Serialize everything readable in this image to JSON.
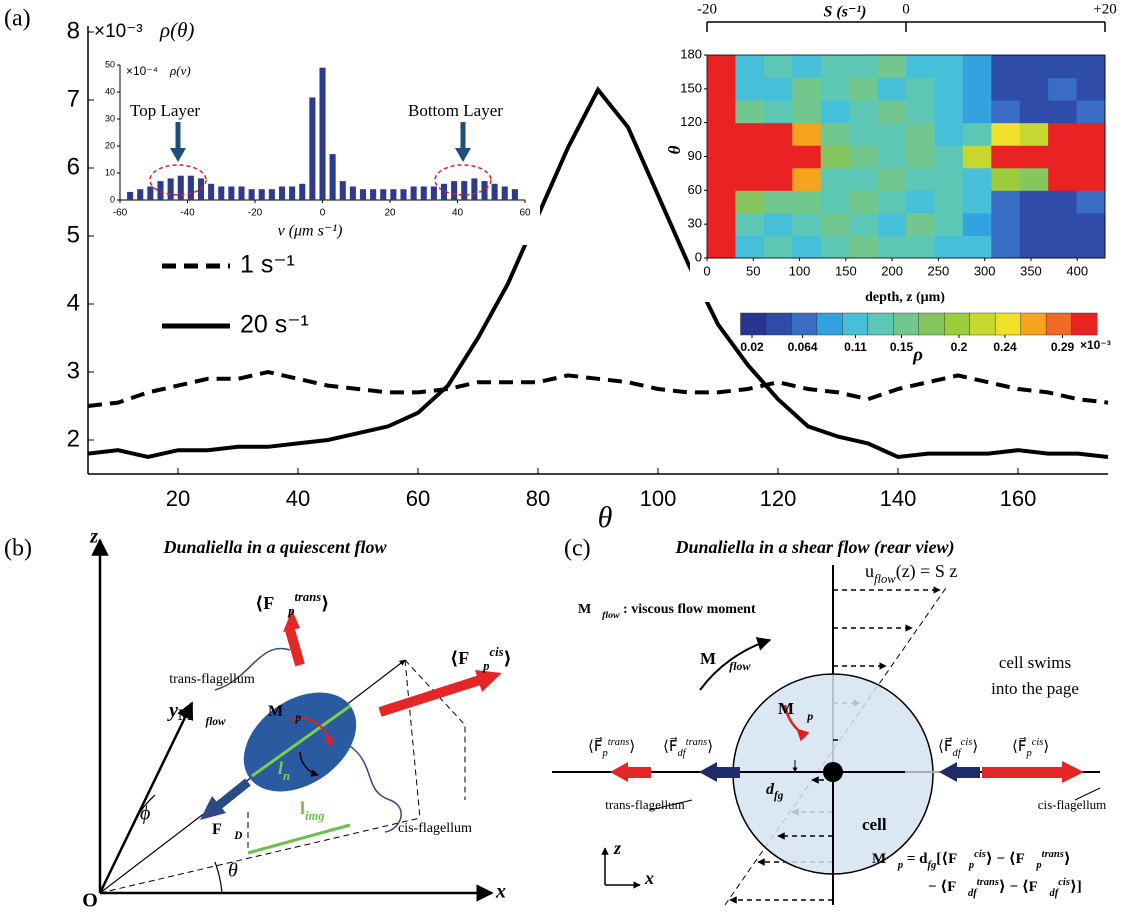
{
  "chart_data": [
    {
      "type": "line",
      "panel_label": "(a)",
      "y_label": "ρ(θ)",
      "y_multiplier": "×10⁻³",
      "x_label": "θ",
      "xlim": [
        5,
        175
      ],
      "ylim": [
        1.5,
        8
      ],
      "xticks": [
        20,
        40,
        60,
        80,
        100,
        120,
        140,
        160
      ],
      "yticks": [
        2,
        3,
        4,
        5,
        6,
        7,
        8
      ],
      "x": [
        5,
        10,
        15,
        20,
        25,
        30,
        35,
        40,
        45,
        50,
        55,
        60,
        65,
        70,
        75,
        80,
        85,
        90,
        95,
        100,
        105,
        110,
        115,
        120,
        125,
        130,
        135,
        140,
        145,
        150,
        155,
        160,
        165,
        170,
        175
      ],
      "series": [
        {
          "name": "1 s⁻¹",
          "color": "#000000",
          "dash": true,
          "values": [
            2.5,
            2.55,
            2.7,
            2.8,
            2.9,
            2.9,
            3.0,
            2.9,
            2.8,
            2.75,
            2.7,
            2.7,
            2.75,
            2.85,
            2.85,
            2.85,
            2.95,
            2.9,
            2.85,
            2.75,
            2.7,
            2.7,
            2.75,
            2.85,
            2.75,
            2.7,
            2.6,
            2.75,
            2.85,
            2.95,
            2.85,
            2.75,
            2.7,
            2.6,
            2.55
          ]
        },
        {
          "name": "20 s⁻¹",
          "color": "#000000",
          "dash": false,
          "values": [
            1.8,
            1.85,
            1.75,
            1.85,
            1.85,
            1.9,
            1.9,
            1.95,
            2.0,
            2.1,
            2.2,
            2.4,
            2.8,
            3.5,
            4.3,
            5.3,
            6.3,
            7.15,
            6.6,
            5.6,
            4.6,
            3.7,
            3.1,
            2.6,
            2.2,
            2.05,
            1.95,
            1.75,
            1.8,
            1.8,
            1.8,
            1.85,
            1.8,
            1.8,
            1.75
          ]
        }
      ]
    },
    {
      "type": "bar",
      "y_label": "ρ(v)",
      "y_multiplier": "×10⁻⁴",
      "x_label": "v (μm s⁻¹)",
      "xlim": [
        -60,
        60
      ],
      "ylim": [
        0,
        50
      ],
      "xticks": [
        -60,
        -40,
        -20,
        0,
        20,
        40,
        60
      ],
      "yticks": [
        0,
        10,
        20,
        30,
        40,
        50
      ],
      "color": "#2e3a8c",
      "annotations": [
        "Top Layer",
        "Bottom Layer"
      ],
      "x": [
        -57,
        -54,
        -51,
        -48,
        -45,
        -42,
        -39,
        -36,
        -33,
        -30,
        -27,
        -24,
        -21,
        -18,
        -15,
        -12,
        -9,
        -6,
        -3,
        0,
        3,
        6,
        9,
        12,
        15,
        18,
        21,
        24,
        27,
        30,
        33,
        36,
        39,
        42,
        45,
        48,
        51,
        54,
        57
      ],
      "values": [
        3,
        4,
        5,
        7,
        8,
        9,
        9,
        8,
        6,
        5,
        5,
        5,
        4,
        4,
        4,
        5,
        5,
        6,
        38,
        49,
        17,
        7,
        5,
        4,
        4,
        4,
        4,
        4,
        5,
        5,
        5,
        6,
        7,
        7,
        8,
        7,
        6,
        5,
        4
      ]
    },
    {
      "type": "heatmap",
      "y_label": "θ",
      "x_label": "depth, z (μm)",
      "top_axis_label": "S (s⁻¹)",
      "xlim": [
        0,
        430
      ],
      "ylim": [
        0,
        180
      ],
      "xticks": [
        0,
        50,
        100,
        150,
        200,
        250,
        300,
        350,
        400
      ],
      "yticks": [
        0,
        30,
        60,
        90,
        120,
        150,
        180
      ],
      "top_lim": [
        -20,
        20
      ],
      "top_ticks": [
        -20,
        0,
        {
          "value": 20,
          "label": "+20"
        }
      ],
      "z": [
        [
          0.32,
          0.12,
          0.14,
          0.1,
          0.13,
          0.15,
          0.14,
          0.13,
          0.12,
          0.1,
          0.06,
          0.05,
          0.04,
          0.05
        ],
        [
          0.32,
          0.13,
          0.1,
          0.14,
          0.16,
          0.14,
          0.12,
          0.15,
          0.13,
          0.09,
          0.07,
          0.04,
          0.05,
          0.04
        ],
        [
          0.32,
          0.18,
          0.16,
          0.15,
          0.13,
          0.15,
          0.14,
          0.12,
          0.14,
          0.1,
          0.06,
          0.05,
          0.04,
          0.06
        ],
        [
          0.32,
          0.32,
          0.3,
          0.26,
          0.14,
          0.13,
          0.15,
          0.14,
          0.13,
          0.12,
          0.2,
          0.18,
          0.3,
          0.32
        ],
        [
          0.32,
          0.32,
          0.32,
          0.3,
          0.18,
          0.15,
          0.14,
          0.16,
          0.13,
          0.22,
          0.3,
          0.32,
          0.32,
          0.32
        ],
        [
          0.32,
          0.32,
          0.31,
          0.27,
          0.15,
          0.14,
          0.13,
          0.15,
          0.12,
          0.14,
          0.24,
          0.22,
          0.31,
          0.32
        ],
        [
          0.32,
          0.16,
          0.14,
          0.15,
          0.12,
          0.14,
          0.16,
          0.13,
          0.12,
          0.08,
          0.06,
          0.05,
          0.05,
          0.07
        ],
        [
          0.32,
          0.12,
          0.11,
          0.15,
          0.13,
          0.15,
          0.12,
          0.14,
          0.11,
          0.08,
          0.05,
          0.04,
          0.06,
          0.05
        ],
        [
          0.32,
          0.11,
          0.13,
          0.12,
          0.14,
          0.13,
          0.15,
          0.12,
          0.1,
          0.09,
          0.05,
          0.04,
          0.05,
          0.04
        ]
      ],
      "zlim": [
        0.01,
        0.32
      ],
      "colormap": [
        "#26368f",
        "#2f4da8",
        "#3a6ec4",
        "#33a2e0",
        "#45c0d8",
        "#5cc7b4",
        "#72c78e",
        "#86c65e",
        "#9ccb3b",
        "#c6d82f",
        "#f0e02a",
        "#f6a31d",
        "#ef6a22",
        "#e92323"
      ],
      "colorbar_ticks": [
        0.02,
        0.064,
        0.11,
        0.15,
        0.2,
        0.24,
        0.29
      ],
      "colorbar_label": "ρ",
      "colorbar_multiplier": "×10⁻³"
    }
  ],
  "panel_b": {
    "panel_label": "(b)",
    "title": "Dunaliella in a quiescent flow",
    "axis_z": "z",
    "axis_y": "y",
    "axis_x": "x",
    "origin": "O",
    "trans_flagellum": "trans-flagellum",
    "cis_flagellum": "cis-flagellum",
    "F_trans": [
      "⟨F⃗",
      {
        "sub": "p"
      },
      {
        "sup": "trans"
      },
      "⟩"
    ],
    "F_cis": [
      "⟨F⃗",
      {
        "sub": "p"
      },
      {
        "sup": "cis"
      },
      "⟩"
    ],
    "M_p": [
      "M⃗",
      {
        "sub": "p"
      }
    ],
    "M_flow": [
      "M⃗",
      {
        "sub": "flow"
      }
    ],
    "F_D": [
      "F⃗",
      {
        "sub": "D"
      }
    ],
    "l_n": [
      "l",
      {
        "sub": "n"
      }
    ],
    "l_img": [
      "l",
      {
        "sub": "img"
      }
    ],
    "phi": "ϕ",
    "theta": "θ"
  },
  "panel_c": {
    "panel_label": "(c)",
    "title": "Dunaliella in a shear flow  (rear view)",
    "flow_law": [
      "u",
      {
        "sub": "flow"
      },
      "(z) = S z"
    ],
    "moment_note": [
      "M⃗",
      {
        "sub": "flow"
      },
      " : viscous flow moment"
    ],
    "M_flow": [
      "M⃗",
      {
        "sub": "flow"
      }
    ],
    "swim_note": [
      "cell swims",
      "into the page"
    ],
    "M_p": [
      "M⃗",
      {
        "sub": "p"
      }
    ],
    "d_fg": [
      "d",
      {
        "sub": "fg"
      }
    ],
    "cell": "cell",
    "F_p_trans": [
      "⟨F⃗",
      {
        "sub": "p"
      },
      {
        "sup": "trans"
      },
      "⟩"
    ],
    "F_df_trans": [
      "⟨F⃗",
      {
        "sub": "df"
      },
      {
        "sup": "trans"
      },
      "⟩"
    ],
    "F_df_cis": [
      "⟨F⃗",
      {
        "sub": "df"
      },
      {
        "sup": "cis"
      },
      "⟩"
    ],
    "F_p_cis": [
      "⟨F⃗",
      {
        "sub": "p"
      },
      {
        "sup": "cis"
      },
      "⟩"
    ],
    "trans_flagellum": "trans-flagellum",
    "cis_flagellum": "cis-flagellum",
    "equation_1": [
      "M⃗",
      {
        "sub": "p"
      },
      " = d",
      {
        "sub": "fg"
      },
      "[⟨F⃗",
      {
        "sub": "p"
      },
      {
        "sup": "cis"
      },
      "⟩ − ⟨F⃗",
      {
        "sub": "p"
      },
      {
        "sup": "trans"
      },
      "⟩"
    ],
    "equation_2": [
      "− ⟨F⃗",
      {
        "sub": "df"
      },
      {
        "sup": "trans"
      },
      "⟩ − ⟨F⃗",
      {
        "sub": "df"
      },
      {
        "sup": "cis"
      },
      "⟩]"
    ],
    "axis_z": "z",
    "axis_x": "x"
  }
}
